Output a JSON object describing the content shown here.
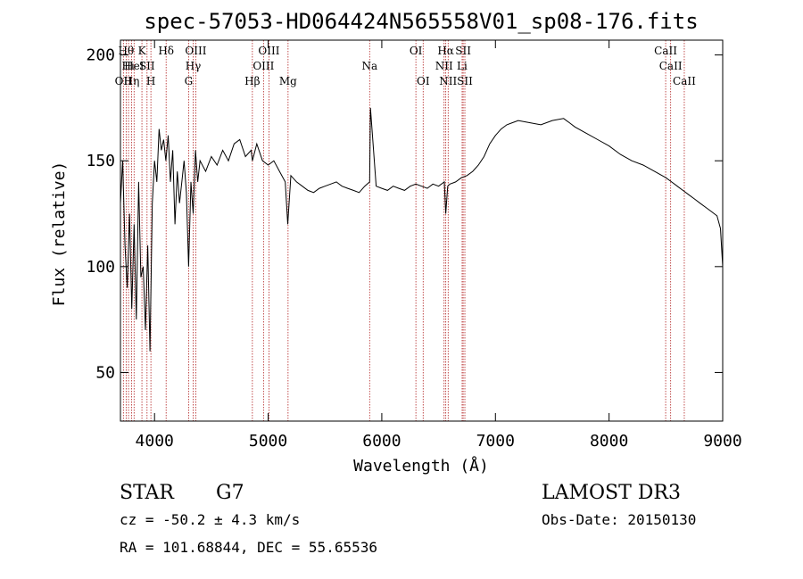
{
  "chart_data": {
    "type": "line",
    "title": "spec-57053-HD064424N565558V01_sp08-176.fits",
    "xlabel": "Wavelength (Å)",
    "ylabel": "Flux (relative)",
    "xlim": [
      3700,
      9000
    ],
    "ylim": [
      27,
      207
    ],
    "xticks": [
      4000,
      5000,
      6000,
      7000,
      8000,
      9000
    ],
    "yticks": [
      50,
      100,
      150,
      200
    ],
    "series": [
      {
        "name": "flux",
        "x": [
          3700,
          3720,
          3740,
          3760,
          3780,
          3800,
          3820,
          3840,
          3860,
          3880,
          3900,
          3920,
          3940,
          3960,
          3980,
          4000,
          4020,
          4040,
          4060,
          4080,
          4100,
          4120,
          4140,
          4160,
          4180,
          4200,
          4220,
          4240,
          4260,
          4280,
          4300,
          4320,
          4340,
          4360,
          4380,
          4400,
          4450,
          4500,
          4550,
          4600,
          4650,
          4700,
          4750,
          4800,
          4850,
          4861,
          4900,
          4950,
          5000,
          5050,
          5100,
          5150,
          5172,
          5200,
          5250,
          5300,
          5350,
          5400,
          5450,
          5500,
          5550,
          5600,
          5650,
          5700,
          5750,
          5800,
          5850,
          5893,
          5900,
          5950,
          6000,
          6050,
          6100,
          6150,
          6200,
          6250,
          6300,
          6350,
          6400,
          6450,
          6500,
          6550,
          6563,
          6580,
          6600,
          6650,
          6700,
          6750,
          6800,
          6850,
          6900,
          6950,
          7000,
          7050,
          7100,
          7150,
          7200,
          7300,
          7400,
          7500,
          7600,
          7650,
          7700,
          7800,
          7900,
          8000,
          8100,
          8200,
          8300,
          8400,
          8500,
          8550,
          8600,
          8650,
          8700,
          8750,
          8800,
          8850,
          8900,
          8950,
          8980,
          9000
        ],
        "y": [
          130,
          150,
          110,
          90,
          125,
          80,
          120,
          75,
          140,
          95,
          100,
          70,
          110,
          60,
          130,
          150,
          140,
          165,
          155,
          160,
          150,
          162,
          140,
          155,
          120,
          145,
          130,
          140,
          150,
          135,
          100,
          140,
          125,
          155,
          140,
          150,
          145,
          152,
          148,
          155,
          150,
          158,
          160,
          152,
          155,
          150,
          158,
          150,
          148,
          150,
          145,
          140,
          120,
          143,
          140,
          138,
          136,
          135,
          137,
          138,
          139,
          140,
          138,
          137,
          136,
          135,
          138,
          140,
          175,
          138,
          137,
          136,
          138,
          137,
          136,
          138,
          139,
          138,
          137,
          139,
          138,
          140,
          125,
          138,
          139,
          140,
          142,
          143,
          145,
          148,
          152,
          158,
          162,
          165,
          167,
          168,
          169,
          168,
          167,
          169,
          170,
          168,
          166,
          163,
          160,
          157,
          153,
          150,
          148,
          145,
          142,
          140,
          138,
          136,
          134,
          132,
          130,
          128,
          126,
          124,
          118,
          100
        ]
      }
    ],
    "line_markers": [
      {
        "wavelength": 3726,
        "labels": [
          "OII"
        ],
        "row": 3
      },
      {
        "wavelength": 3750,
        "labels": [
          "Hθ"
        ],
        "row": 1
      },
      {
        "wavelength": 3771,
        "labels": [
          "Hι"
        ],
        "row": 2
      },
      {
        "wavelength": 3798,
        "labels": [
          "Hη"
        ],
        "row": 3
      },
      {
        "wavelength": 3820,
        "labels": [
          "HeI"
        ],
        "row": 2
      },
      {
        "wavelength": 3889,
        "labels": [
          "K"
        ],
        "row": 1
      },
      {
        "wavelength": 3934,
        "labels": [
          "SII"
        ],
        "row": 2
      },
      {
        "wavelength": 3968,
        "labels": [
          "H"
        ],
        "row": 3
      },
      {
        "wavelength": 4102,
        "labels": [
          "Hδ"
        ],
        "row": 1
      },
      {
        "wavelength": 4300,
        "labels": [
          "G"
        ],
        "row": 3
      },
      {
        "wavelength": 4340,
        "labels": [
          "Hγ"
        ],
        "row": 2
      },
      {
        "wavelength": 4363,
        "labels": [
          "OIII"
        ],
        "row": 1
      },
      {
        "wavelength": 4861,
        "labels": [
          "Hβ"
        ],
        "row": 3
      },
      {
        "wavelength": 4959,
        "labels": [
          "OIII"
        ],
        "row": 2
      },
      {
        "wavelength": 5007,
        "labels": [
          "OIII"
        ],
        "row": 1
      },
      {
        "wavelength": 5175,
        "labels": [
          "Mg"
        ],
        "row": 3
      },
      {
        "wavelength": 5893,
        "labels": [
          "Na"
        ],
        "row": 2
      },
      {
        "wavelength": 6300,
        "labels": [
          "OI"
        ],
        "row": 1
      },
      {
        "wavelength": 6364,
        "labels": [
          "OI"
        ],
        "row": 3
      },
      {
        "wavelength": 6548,
        "labels": [
          "NII"
        ],
        "row": 2
      },
      {
        "wavelength": 6563,
        "labels": [
          "Hα"
        ],
        "row": 1
      },
      {
        "wavelength": 6584,
        "labels": [
          "NII"
        ],
        "row": 3
      },
      {
        "wavelength": 6707,
        "labels": [
          "Li"
        ],
        "row": 2
      },
      {
        "wavelength": 6716,
        "labels": [
          "SII"
        ],
        "row": 1
      },
      {
        "wavelength": 6731,
        "labels": [
          "SII"
        ],
        "row": 3
      },
      {
        "wavelength": 8498,
        "labels": [
          "CaII"
        ],
        "row": 1
      },
      {
        "wavelength": 8542,
        "labels": [
          "CaII"
        ],
        "row": 2
      },
      {
        "wavelength": 8662,
        "labels": [
          "CaII"
        ],
        "row": 3
      }
    ]
  },
  "info": {
    "object_class": "STAR",
    "subclass": "G7",
    "survey": "LAMOST DR3",
    "cz": "cz = -50.2 ± 4.3 km/s",
    "obs_date": "Obs-Date: 20150130",
    "radec": "RA = 101.68844, DEC =  55.65536"
  },
  "colors": {
    "marker_line": "#b22222",
    "spectrum": "#000000",
    "axis": "#000000"
  }
}
